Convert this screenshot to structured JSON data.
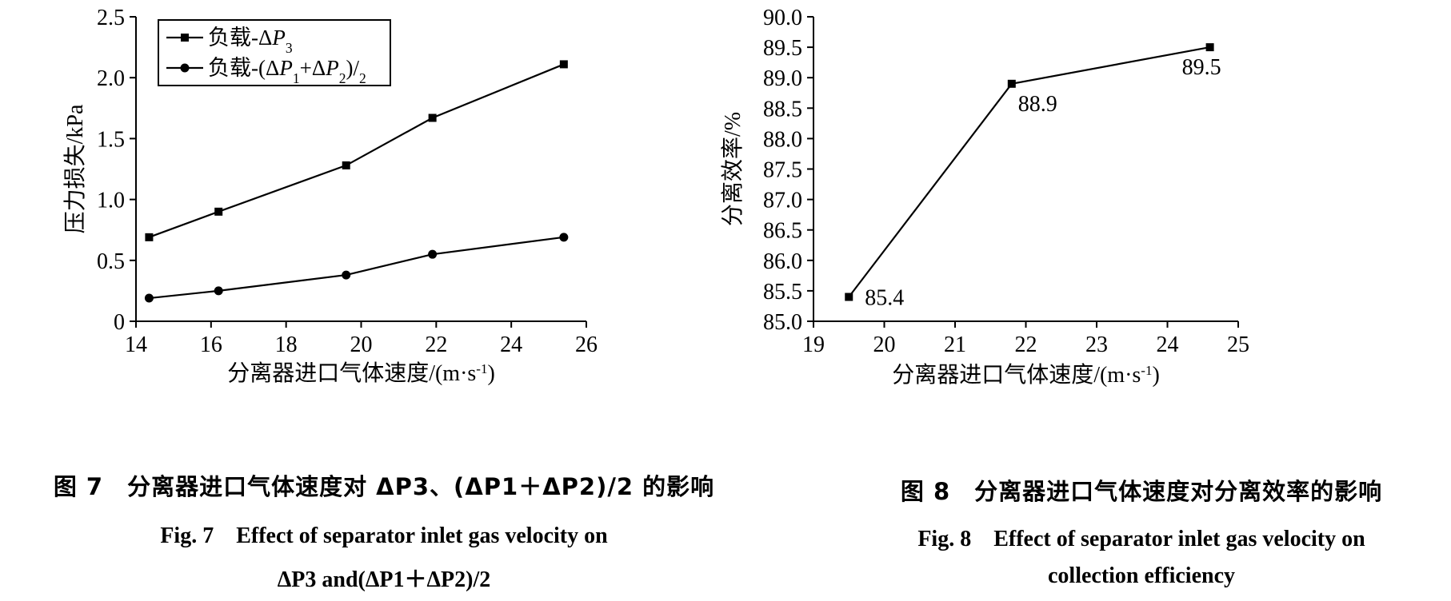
{
  "chart_data": [
    {
      "type": "line",
      "xlabel": "分离器进口气体速度/(m·s",
      "xlabel_sup": "-1",
      "xlabel_tail": ")",
      "ylabel": "压力损失/kPa",
      "xlim": [
        14,
        26
      ],
      "ylim": [
        0,
        2.5
      ],
      "x_ticks": [
        "14",
        "16",
        "18",
        "20",
        "22",
        "24",
        "26"
      ],
      "y_ticks": [
        "0",
        "0.5",
        "1.0",
        "1.5",
        "2.0",
        "2.5"
      ],
      "grid": false,
      "legend_position": "top-left",
      "series": [
        {
          "name": "负载-ΔP3",
          "marker": "square",
          "x": [
            14.35,
            16.2,
            19.6,
            21.9,
            25.4
          ],
          "y": [
            0.69,
            0.9,
            1.28,
            1.67,
            2.11
          ]
        },
        {
          "name": "负载-(ΔP1+ΔP2)/2",
          "marker": "circle",
          "x": [
            14.35,
            16.2,
            19.6,
            21.9,
            25.4
          ],
          "y": [
            0.19,
            0.25,
            0.38,
            0.55,
            0.69
          ]
        }
      ]
    },
    {
      "type": "line",
      "xlabel": "分离器进口气体速度/(m·s",
      "xlabel_sup": "-1",
      "xlabel_tail": ")",
      "ylabel": "分离效率/%",
      "xlim": [
        19,
        25
      ],
      "ylim": [
        85,
        90
      ],
      "x_ticks": [
        "19",
        "20",
        "21",
        "22",
        "23",
        "24",
        "25"
      ],
      "y_ticks": [
        "85.0",
        "85.5",
        "86.0",
        "86.5",
        "87.0",
        "87.5",
        "88.0",
        "88.5",
        "89.0",
        "89.5",
        "90.0"
      ],
      "grid": false,
      "series": [
        {
          "marker": "square",
          "x": [
            19.5,
            21.8,
            24.6
          ],
          "y": [
            85.4,
            88.9,
            89.5
          ],
          "data_labels": [
            "85.4",
            "88.9",
            "89.5"
          ]
        }
      ]
    }
  ],
  "captions": {
    "fig7_cn": "图 7　分离器进口气体速度对 ΔP3、(ΔP1＋ΔP2)/2 的影响",
    "fig7_en_line1": "Fig. 7　Effect of separator inlet gas velocity on",
    "fig7_en_line2": "ΔP3 and(ΔP1＋ΔP2)/2",
    "fig8_cn": "图 8　分离器进口气体速度对分离效率的影响",
    "fig8_en_line1": "Fig. 8　Effect of separator inlet gas velocity on",
    "fig8_en_line2": "collection efficiency"
  }
}
